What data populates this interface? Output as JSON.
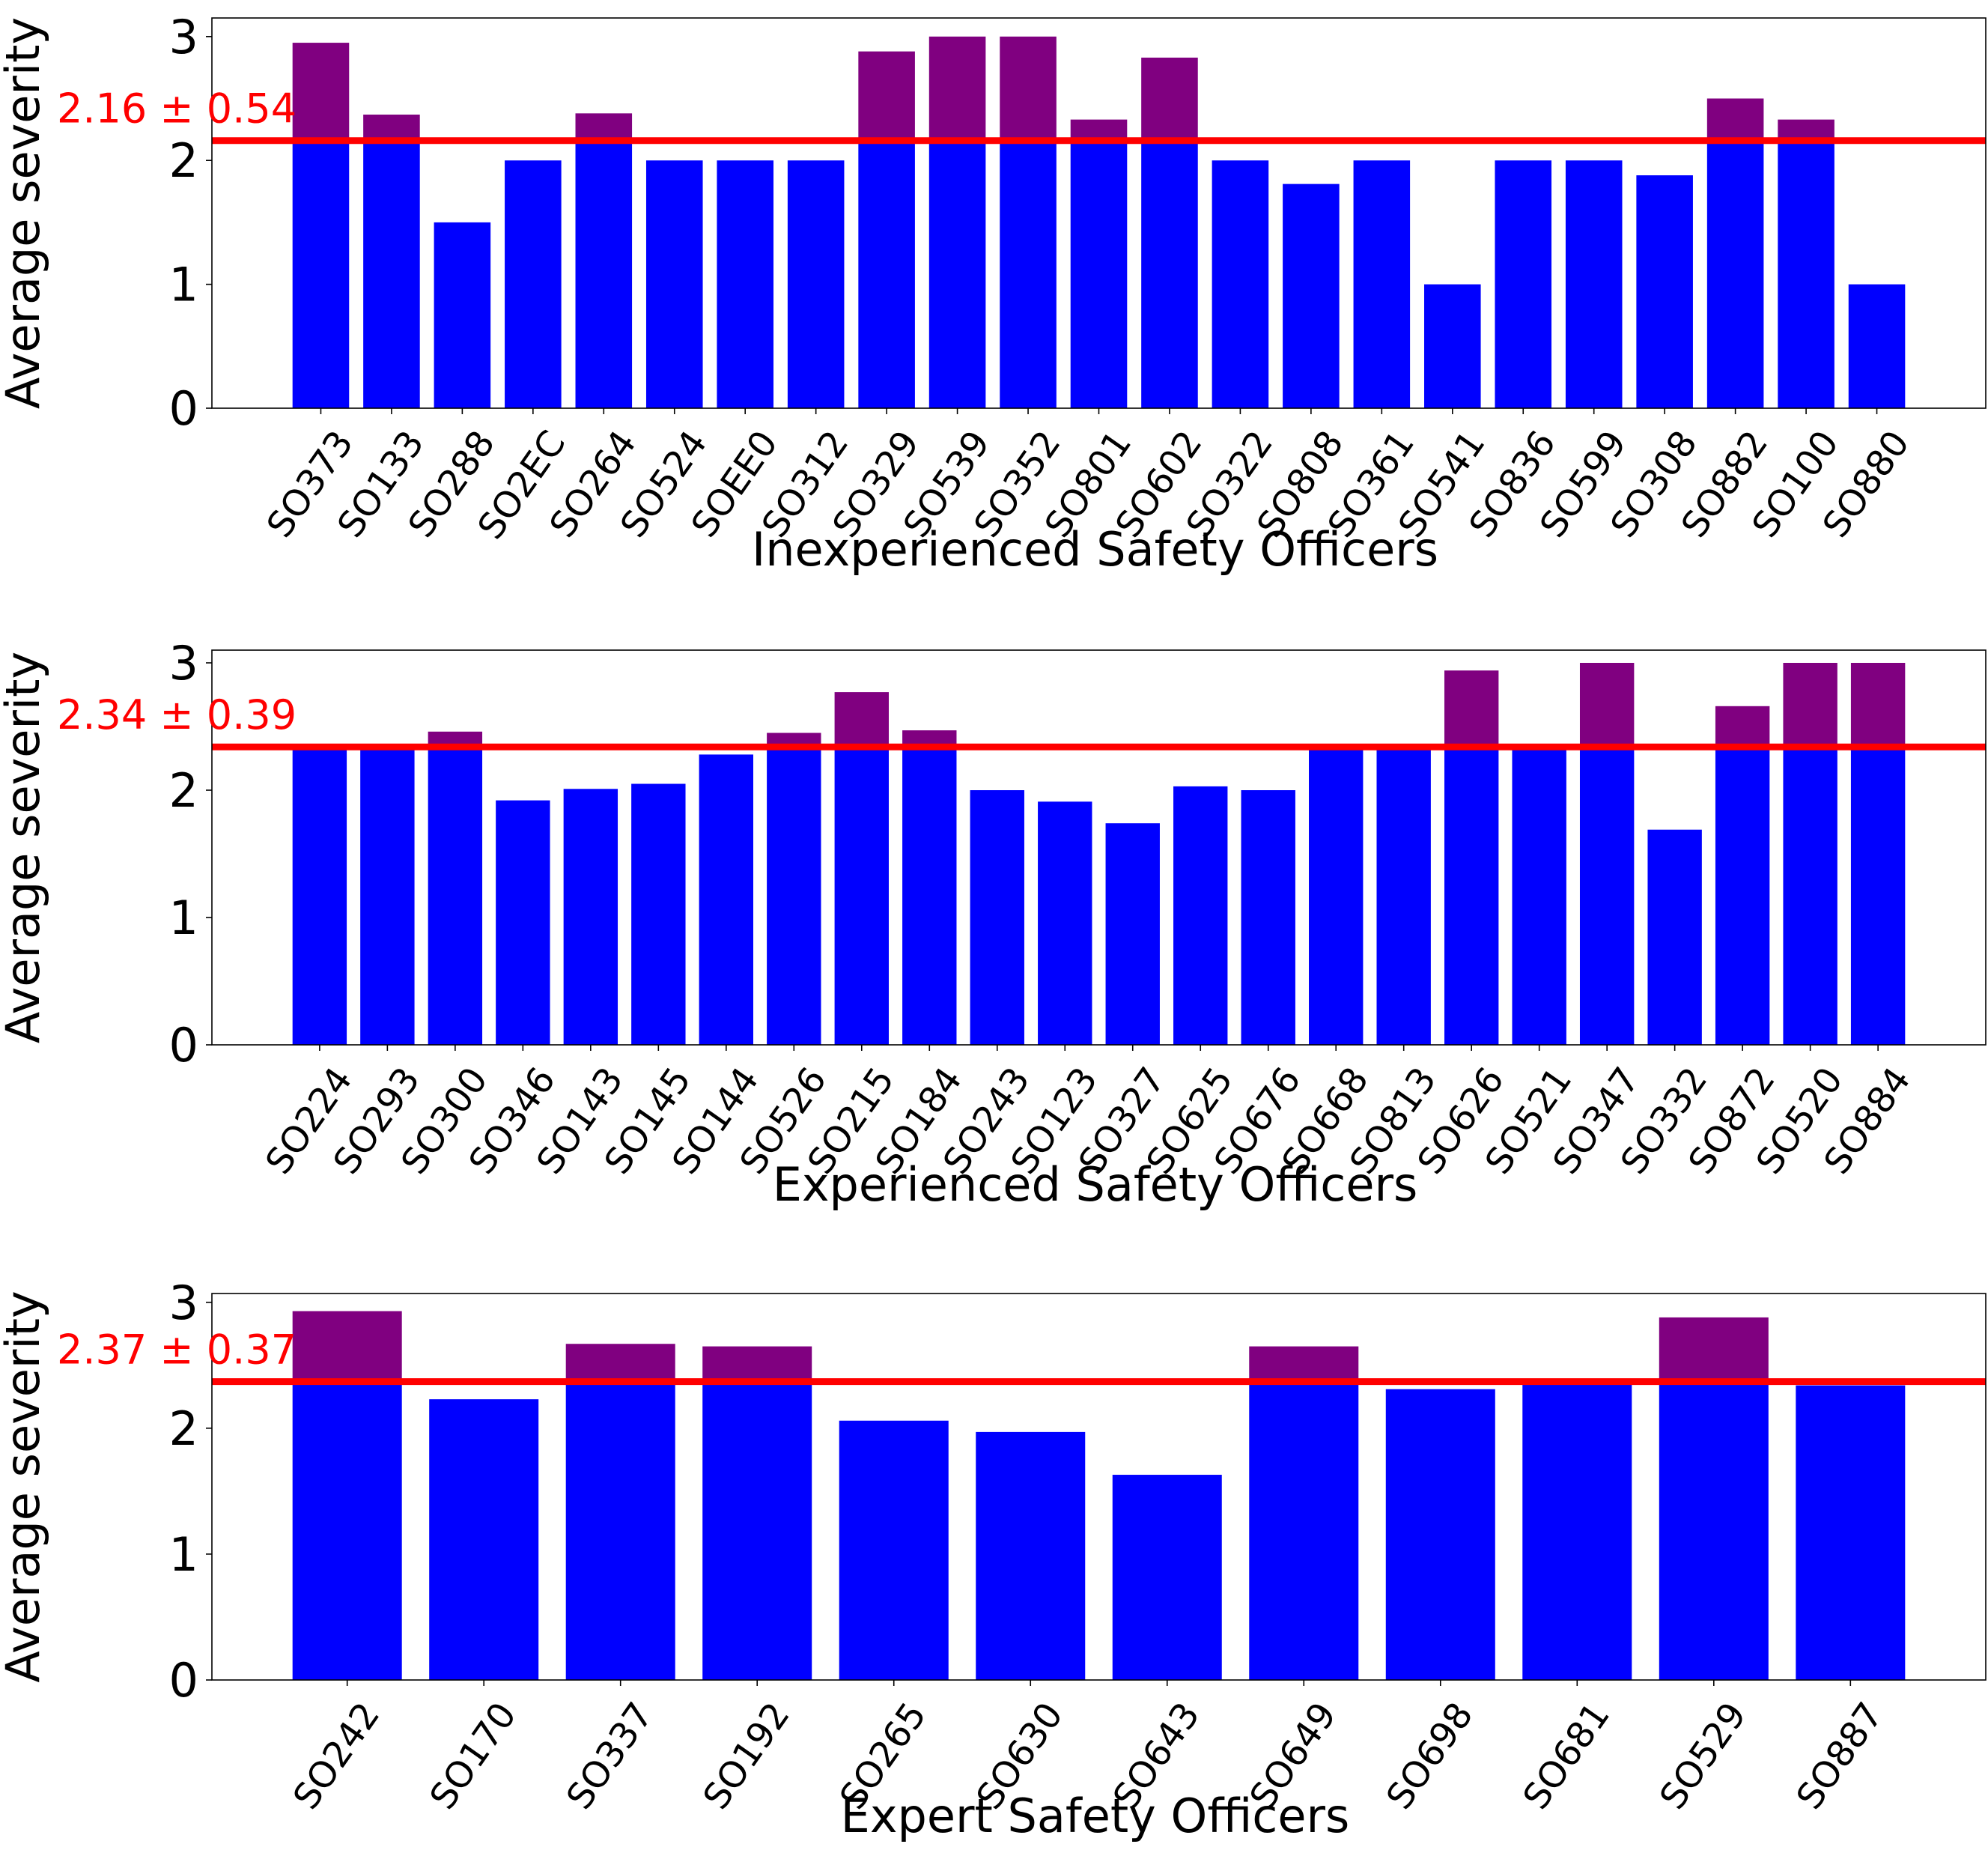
{
  "figure": {
    "bar_color": "#0000ff",
    "above_mean_color": "#800080",
    "mean_line_color": "#ff0000",
    "axis_color": "#000000"
  },
  "chart_data": [
    {
      "type": "bar",
      "title": "",
      "xlabel": "Inexperienced Safety Officers",
      "ylabel": "Average severity",
      "ylim": [
        0,
        3.15
      ],
      "yticks": [
        "0",
        "1",
        "2",
        "3"
      ],
      "grid": false,
      "mean": 2.16,
      "mean_label": "2.16 ± 0.54",
      "categories": [
        "SO373",
        "SO133",
        "SO288",
        "SO2EC",
        "SO264",
        "SO524",
        "SOEE0",
        "SO312",
        "SO329",
        "SO539",
        "SO352",
        "SO801",
        "SO602",
        "SO322",
        "SO808",
        "SO361",
        "SO541",
        "SO836",
        "SO599",
        "SO308",
        "SO882",
        "SO100",
        "SO880"
      ],
      "values": [
        2.95,
        2.37,
        1.5,
        2.0,
        2.38,
        2.0,
        2.0,
        2.0,
        2.88,
        3.0,
        3.0,
        2.33,
        2.83,
        2.0,
        1.81,
        2.0,
        1.0,
        2.0,
        2.0,
        1.88,
        2.5,
        2.33,
        1.0
      ]
    },
    {
      "type": "bar",
      "title": "",
      "xlabel": "Experienced Safety Officers",
      "ylabel": "Average severity",
      "ylim": [
        0,
        3.1
      ],
      "yticks": [
        "0",
        "1",
        "2",
        "3"
      ],
      "grid": false,
      "mean": 2.34,
      "mean_label": "2.34 ± 0.39",
      "categories": [
        "SO224",
        "SO293",
        "SO300",
        "SO346",
        "SO143",
        "SO145",
        "SO144",
        "SO526",
        "SO215",
        "SO184",
        "SO243",
        "SO123",
        "SO327",
        "SO625",
        "SO676",
        "SO668",
        "SO813",
        "SO626",
        "SO521",
        "SO347",
        "SO332",
        "SO872",
        "SO520",
        "SO884"
      ],
      "values": [
        2.33,
        2.33,
        2.46,
        1.92,
        2.01,
        2.05,
        2.28,
        2.45,
        2.77,
        2.47,
        2.0,
        1.91,
        1.74,
        2.03,
        2.0,
        2.33,
        2.33,
        2.94,
        2.33,
        3.0,
        1.69,
        2.66,
        3.0,
        3.0
      ]
    },
    {
      "type": "bar",
      "title": "",
      "xlabel": "Expert Safety Officers",
      "ylabel": "Average severity",
      "ylim": [
        0,
        3.07
      ],
      "yticks": [
        "0",
        "1",
        "2",
        "3"
      ],
      "grid": false,
      "mean": 2.37,
      "mean_label": "2.37 ± 0.37",
      "categories": [
        "SO242",
        "SO170",
        "SO337",
        "SO192",
        "SO265",
        "SO630",
        "SO643",
        "SO649",
        "SO698",
        "SO681",
        "SO529",
        "SO887"
      ],
      "values": [
        2.93,
        2.23,
        2.67,
        2.65,
        2.06,
        1.97,
        1.63,
        2.65,
        2.31,
        2.37,
        2.88,
        2.34
      ]
    }
  ]
}
